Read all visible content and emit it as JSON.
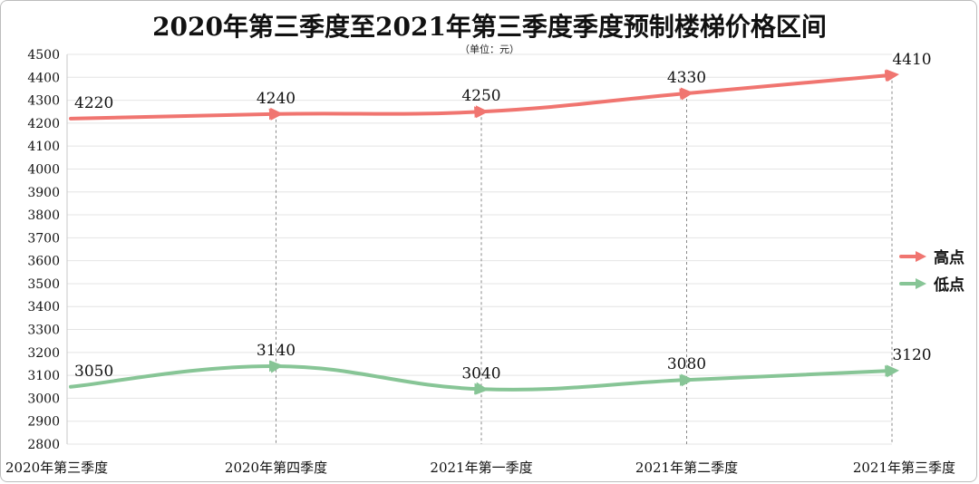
{
  "title": "2020年第三季度至2021年第三季度季度预制楼梯价格区间",
  "unit": "（单位：元）",
  "colors": {
    "high": "#F07570",
    "low": "#87C596",
    "grid": "#e4e4e4",
    "drop": "#8a8a8a"
  },
  "legend": [
    {
      "name": "高点",
      "color": "#F07570"
    },
    {
      "name": "低点",
      "color": "#87C596"
    }
  ],
  "chart_data": {
    "type": "line",
    "title": "2020年第三季度至2021年第三季度季度预制楼梯价格区间",
    "categories": [
      "2020年第三季度",
      "2020年第四季度",
      "2021年第一季度",
      "2021年第二季度",
      "2021年第三季度"
    ],
    "series": [
      {
        "name": "高点",
        "values": [
          4220,
          4240,
          4250,
          4330,
          4410
        ],
        "color": "#F07570"
      },
      {
        "name": "低点",
        "values": [
          3050,
          3140,
          3040,
          3080,
          3120
        ],
        "color": "#87C596"
      }
    ],
    "ylim": [
      2800,
      4500
    ],
    "yticks": [
      2800,
      2900,
      3000,
      3100,
      3200,
      3300,
      3400,
      3500,
      3600,
      3700,
      3800,
      3900,
      4000,
      4100,
      4200,
      4300,
      4400,
      4500
    ],
    "grid": true,
    "legend_position": "right",
    "smooth": true,
    "data_labels": true
  }
}
